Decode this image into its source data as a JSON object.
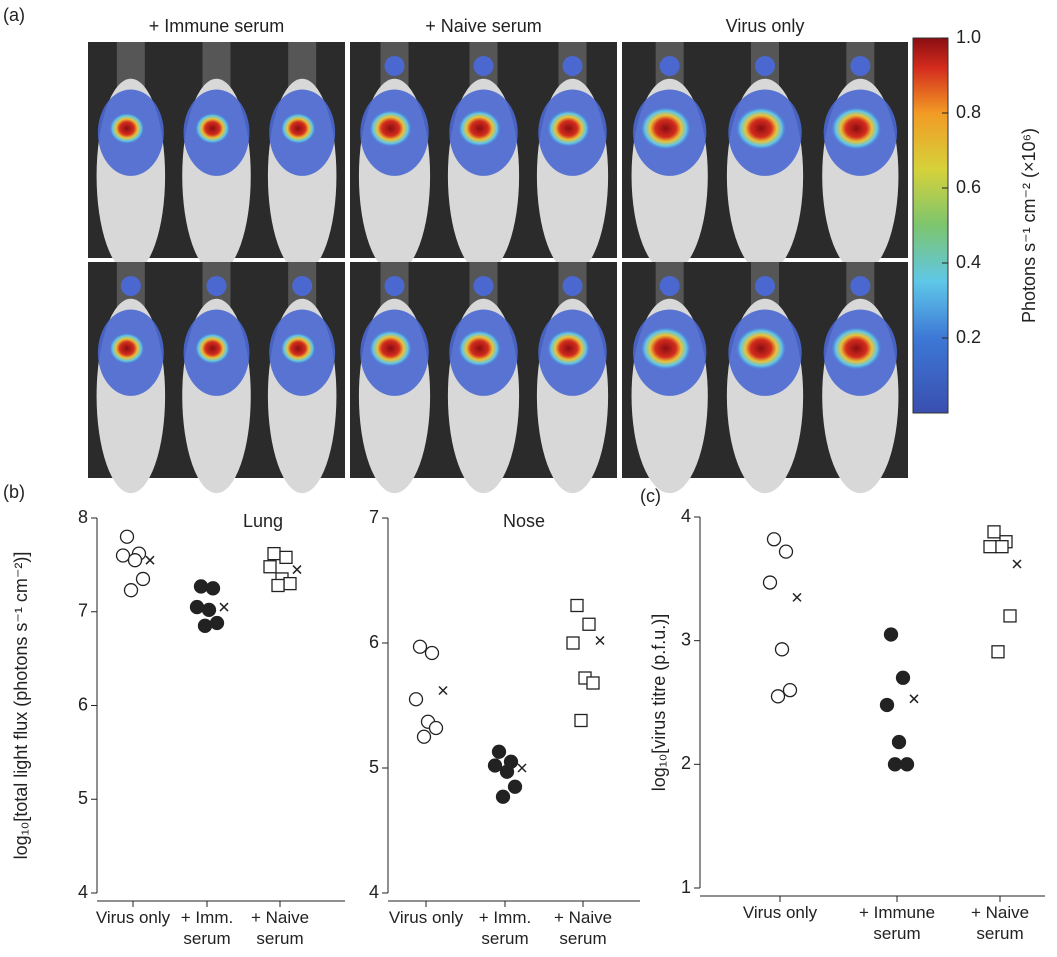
{
  "panel_labels": [
    "(a)",
    "(b)",
    "(c)"
  ],
  "image_panel": {
    "column_titles": [
      "+ Immune serum",
      "+ Naive serum",
      "Virus only"
    ]
  },
  "colorbar": {
    "label": "Photons s⁻¹ cm⁻² (×10⁶)",
    "lim": [
      0,
      1
    ],
    "ticks": [
      0.2,
      0.4,
      0.6,
      0.8,
      {
        "value": 1,
        "label": "1.0"
      }
    ]
  },
  "chart_data": [
    {
      "type": "strip",
      "title": "Lung",
      "ylabel": "log₁₀[total light flux (photons s⁻¹ cm⁻²)]",
      "categories": [
        "Virus only",
        "+ Imm. serum",
        "+ Naive serum"
      ],
      "ylim": [
        4,
        8
      ],
      "yticks": [
        4,
        5,
        6,
        7,
        8
      ],
      "groups": [
        {
          "marker": "open-circle",
          "values": [
            7.8,
            7.62,
            7.6,
            7.55,
            7.35,
            7.23
          ],
          "mean": 7.55
        },
        {
          "marker": "filled-circle",
          "values": [
            7.27,
            7.25,
            7.05,
            7.02,
            6.88,
            6.85
          ],
          "mean": 7.05
        },
        {
          "marker": "open-square",
          "values": [
            7.62,
            7.58,
            7.48,
            7.35,
            7.3,
            7.28
          ],
          "mean": 7.45
        }
      ]
    },
    {
      "type": "strip",
      "title": "Nose",
      "categories": [
        "Virus only",
        "+ Imm. serum",
        "+ Naive serum"
      ],
      "ylim": [
        4,
        7
      ],
      "yticks": [
        4,
        5,
        6,
        7
      ],
      "groups": [
        {
          "marker": "open-circle",
          "values": [
            5.97,
            5.92,
            5.55,
            5.37,
            5.32,
            5.25
          ],
          "mean": 5.62
        },
        {
          "marker": "filled-circle",
          "values": [
            5.13,
            5.05,
            5.02,
            4.97,
            4.85,
            4.77
          ],
          "mean": 5.0
        },
        {
          "marker": "open-square",
          "values": [
            6.3,
            6.15,
            6.0,
            5.72,
            5.68,
            5.38
          ],
          "mean": 6.02
        }
      ]
    },
    {
      "type": "strip",
      "ylabel": "log₁₀[virus titre (p.f.u.)]",
      "categories": [
        "Virus only",
        "+ Immune serum",
        "+ Naive serum"
      ],
      "ylim": [
        1,
        4
      ],
      "yticks": [
        1,
        2,
        3,
        4
      ],
      "groups": [
        {
          "marker": "open-circle",
          "values": [
            3.82,
            3.72,
            3.47,
            2.93,
            2.6,
            2.55
          ],
          "mean": 3.35
        },
        {
          "marker": "filled-circle",
          "values": [
            3.05,
            2.7,
            2.48,
            2.18,
            2.0,
            2.0
          ],
          "mean": 2.53
        },
        {
          "marker": "open-square",
          "values": [
            3.88,
            3.8,
            3.76,
            3.76,
            3.2,
            2.91
          ],
          "mean": 3.62
        }
      ]
    }
  ]
}
